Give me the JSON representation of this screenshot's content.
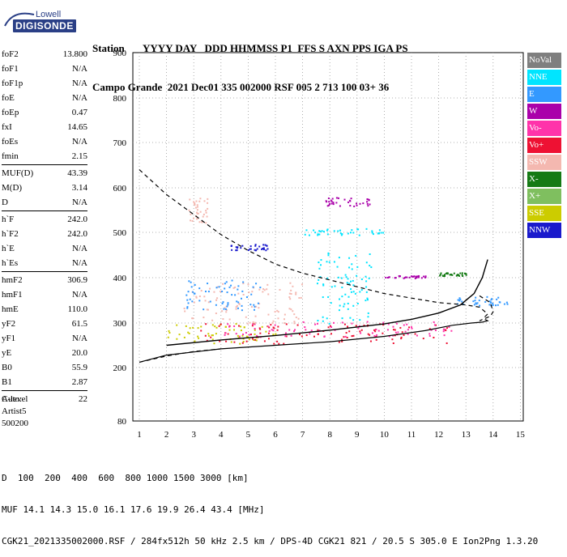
{
  "logo": {
    "top": "Lowell",
    "bottom": "DIGISONDE"
  },
  "header": {
    "line1": "Station       YYYY DAY   DDD HHMMSS P1  FFS S AXN PPS IGA PS",
    "line2": "Campo Grande  2021 Dec01 335 002000 RSF 005 2 713 100 03+ 36"
  },
  "params": [
    {
      "label": "foF2",
      "value": "13.800"
    },
    {
      "label": "foF1",
      "value": "N/A"
    },
    {
      "label": "foF1p",
      "value": "N/A"
    },
    {
      "label": "foE",
      "value": "N/A"
    },
    {
      "label": "foEp",
      "value": "0.47"
    },
    {
      "label": "fxI",
      "value": "14.65"
    },
    {
      "label": "foEs",
      "value": "N/A"
    },
    {
      "label": "fmin",
      "value": "2.15"
    },
    {
      "sep": true
    },
    {
      "label": "MUF(D)",
      "value": "43.39"
    },
    {
      "label": "M(D)",
      "value": "3.14"
    },
    {
      "label": "D",
      "value": "N/A"
    },
    {
      "sep": true
    },
    {
      "label": "h`F",
      "value": "242.0"
    },
    {
      "label": "h`F2",
      "value": "242.0"
    },
    {
      "label": "h`E",
      "value": "N/A"
    },
    {
      "label": "h`Es",
      "value": "N/A"
    },
    {
      "sep": true
    },
    {
      "label": "hmF2",
      "value": "306.9"
    },
    {
      "label": "hmF1",
      "value": "N/A"
    },
    {
      "label": "hmE",
      "value": "110.0"
    },
    {
      "label": "yF2",
      "value": "61.5"
    },
    {
      "label": "yF1",
      "value": "N/A"
    },
    {
      "label": "yE",
      "value": "20.0"
    },
    {
      "label": "B0",
      "value": "55.9"
    },
    {
      "label": "B1",
      "value": "2.87"
    },
    {
      "sep": true
    },
    {
      "label": "C-level",
      "value": "22"
    }
  ],
  "auto": [
    "Auto:",
    "Artist5",
    "500200"
  ],
  "legend": [
    {
      "label": "NoVal",
      "color": "#7f7f7f"
    },
    {
      "label": "NNE",
      "color": "#00e5ff"
    },
    {
      "label": "E",
      "color": "#3399ff"
    },
    {
      "label": "W",
      "color": "#aa00aa"
    },
    {
      "label": "Vo-",
      "color": "#ff33aa"
    },
    {
      "label": "Vo+",
      "color": "#ee1133"
    },
    {
      "label": "SSW",
      "color": "#f4b8b0"
    },
    {
      "label": "X-",
      "color": "#157a15"
    },
    {
      "label": "X+",
      "color": "#7fbf5f"
    },
    {
      "label": "SSE",
      "color": "#cccc00"
    },
    {
      "label": "NNW",
      "color": "#1a1acc"
    }
  ],
  "icons": {
    "logo": "digisonde-swoosh-logo"
  },
  "chart_data": {
    "type": "scatter",
    "x_ticks": [
      1,
      2,
      3,
      4,
      5,
      6,
      7,
      8,
      9,
      10,
      11,
      12,
      13,
      14,
      15
    ],
    "y_ticks": [
      80,
      200,
      300,
      400,
      500,
      600,
      700,
      800,
      900
    ],
    "xlim": [
      1,
      15
    ],
    "y_scale": "log",
    "grid": "dotted",
    "legend_placement": "right",
    "clusters": [
      {
        "color": "#cccc00",
        "x": [
          2.0,
          6.0
        ],
        "y": [
          255,
          300
        ]
      },
      {
        "color": "#ee1133",
        "x": [
          3.0,
          12.5
        ],
        "y": [
          255,
          300
        ]
      },
      {
        "color": "#ff33aa",
        "x": [
          4.0,
          12.5
        ],
        "y": [
          270,
          305
        ]
      },
      {
        "color": "#f4b8b0",
        "x": [
          2.6,
          7.0
        ],
        "y": [
          300,
          390
        ]
      },
      {
        "color": "#3399ff",
        "x": [
          2.7,
          5.5
        ],
        "y": [
          330,
          400
        ]
      },
      {
        "color": "#00e5ff",
        "x": [
          7.0,
          10.0
        ],
        "y": [
          495,
          510
        ]
      },
      {
        "color": "#00e5ff",
        "x": [
          7.5,
          9.5
        ],
        "y": [
          300,
          460
        ]
      },
      {
        "color": "#f4b8b0",
        "x": [
          2.8,
          3.5
        ],
        "y": [
          520,
          580
        ]
      },
      {
        "color": "#aa00aa",
        "x": [
          7.8,
          9.5
        ],
        "y": [
          560,
          580
        ]
      },
      {
        "color": "#1a1acc",
        "x": [
          4.3,
          5.8
        ],
        "y": [
          462,
          475
        ]
      },
      {
        "color": "#157a15",
        "x": [
          12.0,
          13.0
        ],
        "y": [
          405,
          412
        ]
      },
      {
        "color": "#3399ff",
        "x": [
          12.5,
          14.5
        ],
        "y": [
          340,
          360
        ]
      },
      {
        "color": "#aa00aa",
        "x": [
          10.0,
          11.5
        ],
        "y": [
          400,
          406
        ]
      }
    ],
    "trace_fitted": {
      "x": [
        2.0,
        4.0,
        6.0,
        8.0,
        10.0,
        11.0,
        12.0,
        12.8,
        13.3,
        13.6,
        13.8
      ],
      "y": [
        250,
        262,
        272,
        284,
        298,
        308,
        322,
        340,
        365,
        400,
        440
      ]
    },
    "trace_lower": {
      "x": [
        1.0,
        2.0,
        4.0,
        6.0,
        8.0,
        10.0,
        11.5,
        12.5,
        13.2,
        13.6,
        13.8,
        13.7
      ],
      "y": [
        212,
        228,
        242,
        250,
        258,
        270,
        283,
        295,
        300,
        302,
        305,
        308
      ]
    },
    "trace_dashed_left": {
      "x": [
        1.0,
        2.0,
        3.0,
        4.0,
        5.0,
        6.0,
        7.0,
        8.0,
        9.0,
        10.0,
        11.0,
        12.0,
        13.0,
        13.5,
        13.8,
        13.6
      ],
      "y": [
        640,
        585,
        540,
        495,
        460,
        430,
        410,
        395,
        380,
        365,
        355,
        345,
        340,
        335,
        320,
        308
      ]
    },
    "trace_dashed_right": {
      "x": [
        13.5,
        13.9,
        14.0,
        13.9,
        13.5
      ],
      "y": [
        360,
        345,
        325,
        315,
        305
      ]
    },
    "trace_dashed_bottom": {
      "x": [
        1.0,
        2.0,
        3.0,
        4.0
      ],
      "y": [
        212,
        226,
        236,
        242
      ]
    }
  },
  "bottom": {
    "row1_label": "D",
    "row1_values": "  100  200  400  600  800 1000 1500 3000 [km]",
    "row2_label": "MUF",
    "row2_values": " 14.1 14.3 15.0 16.1 17.6 19.9 26.4 43.4 [MHz]",
    "footer": "CGK21_2021335002000.RSF / 284fx512h 50 kHz 2.5 km / DPS-4D CGK21 821 / 20.5 S 305.0 E Ion2Png 1.3.20"
  }
}
